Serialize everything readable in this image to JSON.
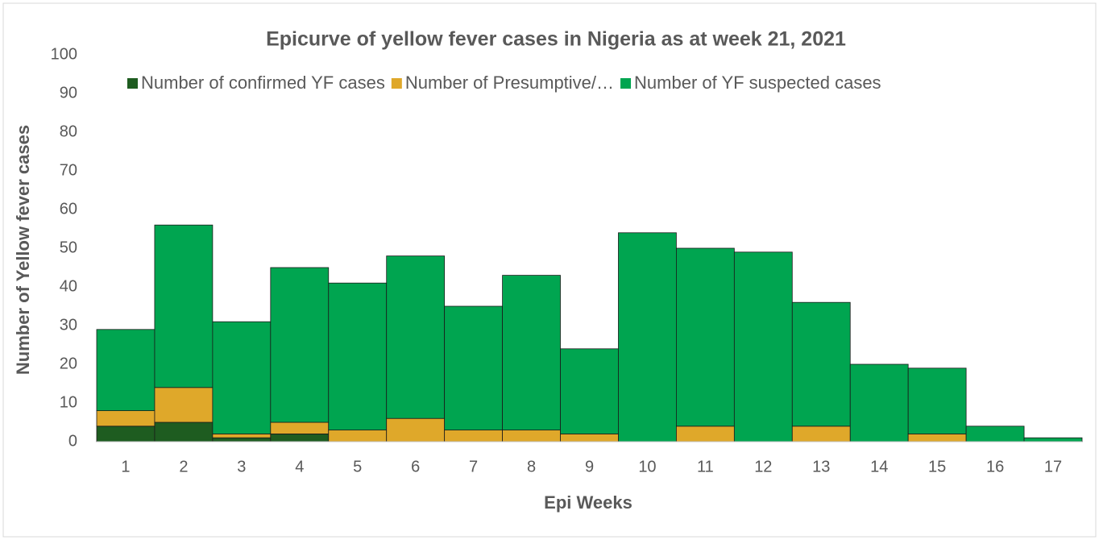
{
  "chart_data": {
    "type": "stacked_bar",
    "title": "Epicurve of yellow fever cases in Nigeria as at week 21, 2021",
    "x_label": "Epi Weeks",
    "y_label": "Number of Yellow fever cases",
    "categories": [
      "1",
      "2",
      "3",
      "4",
      "5",
      "6",
      "7",
      "8",
      "9",
      "10",
      "11",
      "12",
      "13",
      "14",
      "15",
      "16",
      "17"
    ],
    "series": [
      {
        "name": "Number of confirmed YF cases",
        "color": "#1e5c20",
        "values": [
          4,
          5,
          1,
          2,
          0,
          0,
          0,
          0,
          0,
          0,
          0,
          0,
          0,
          0,
          0,
          0,
          0
        ]
      },
      {
        "name": "Number of Presumptive/…",
        "color": "#dfa82a",
        "values": [
          4,
          9,
          1,
          3,
          3,
          6,
          3,
          3,
          2,
          0,
          4,
          0,
          4,
          0,
          2,
          0,
          0
        ]
      },
      {
        "name": "Number of YF suspected cases",
        "color": "#00a550",
        "values": [
          21,
          42,
          29,
          40,
          38,
          42,
          32,
          40,
          22,
          54,
          46,
          49,
          32,
          20,
          17,
          4,
          1
        ]
      }
    ],
    "ylim": [
      0,
      100
    ],
    "yticks": [
      0,
      10,
      20,
      30,
      40,
      50,
      60,
      70,
      80,
      90,
      100
    ],
    "legend": "top"
  }
}
